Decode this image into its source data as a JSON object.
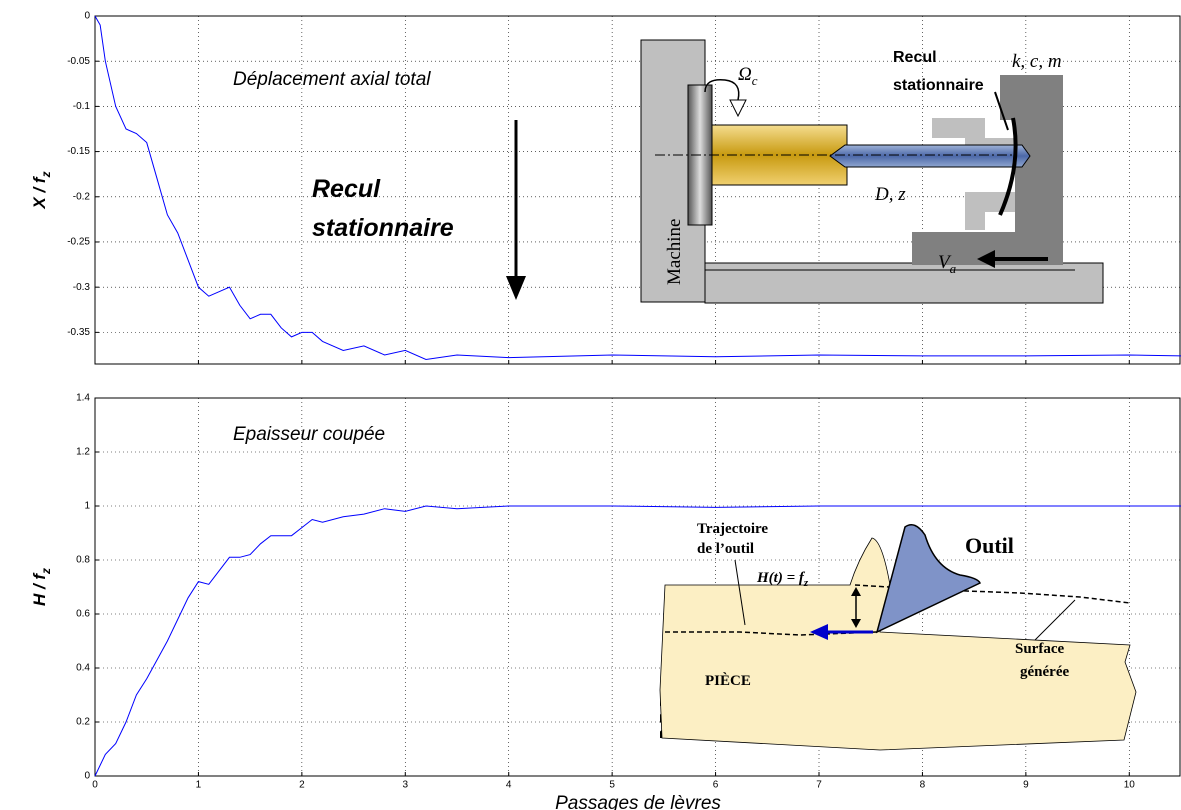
{
  "chart_data": [
    {
      "type": "line",
      "color": "#0000ff",
      "grid": true,
      "ylabel": {
        "base": "X / f",
        "sub": "z"
      },
      "xlim": [
        0,
        10.5
      ],
      "ylim": [
        -0.385,
        0
      ],
      "yticks": [
        0,
        -0.05,
        -0.1,
        -0.15,
        -0.2,
        -0.25,
        -0.3,
        -0.35
      ],
      "annotations": [
        "Déplacement axial total",
        "Recul",
        "stationnaire"
      ],
      "x": [
        0,
        0.05,
        0.1,
        0.2,
        0.3,
        0.4,
        0.5,
        0.6,
        0.7,
        0.8,
        0.9,
        1.0,
        1.1,
        1.2,
        1.3,
        1.4,
        1.5,
        1.6,
        1.7,
        1.8,
        1.9,
        2.0,
        2.1,
        2.2,
        2.4,
        2.6,
        2.8,
        3.0,
        3.2,
        3.5,
        4,
        5,
        6,
        7,
        8,
        9,
        10,
        10.5
      ],
      "values": [
        0,
        -0.01,
        -0.05,
        -0.1,
        -0.125,
        -0.13,
        -0.14,
        -0.18,
        -0.22,
        -0.24,
        -0.27,
        -0.3,
        -0.31,
        -0.305,
        -0.3,
        -0.32,
        -0.335,
        -0.33,
        -0.33,
        -0.345,
        -0.355,
        -0.35,
        -0.35,
        -0.36,
        -0.37,
        -0.365,
        -0.375,
        -0.37,
        -0.38,
        -0.375,
        -0.378,
        -0.375,
        -0.377,
        -0.375,
        -0.376,
        -0.376,
        -0.375,
        -0.376
      ]
    },
    {
      "type": "line",
      "color": "#0000ff",
      "grid": true,
      "ylabel": {
        "base": "H / f",
        "sub": "z"
      },
      "xlabel": "Passages de lèvres",
      "xlim": [
        0,
        10.5
      ],
      "ylim": [
        0,
        1.4
      ],
      "xticks": [
        0,
        1,
        2,
        3,
        4,
        5,
        6,
        7,
        8,
        9,
        10
      ],
      "yticks": [
        0,
        0.2,
        0.4,
        0.6,
        0.8,
        1,
        1.2,
        1.4
      ],
      "annotations": [
        "Epaisseur coupée"
      ],
      "x": [
        0,
        0.1,
        0.2,
        0.3,
        0.4,
        0.5,
        0.6,
        0.7,
        0.8,
        0.9,
        1.0,
        1.1,
        1.2,
        1.3,
        1.4,
        1.5,
        1.6,
        1.7,
        1.8,
        1.9,
        2.0,
        2.1,
        2.2,
        2.4,
        2.6,
        2.8,
        3.0,
        3.2,
        3.5,
        4,
        5,
        6,
        7,
        8,
        9,
        10,
        10.5
      ],
      "values": [
        0,
        0.08,
        0.12,
        0.2,
        0.3,
        0.36,
        0.43,
        0.5,
        0.58,
        0.66,
        0.72,
        0.71,
        0.76,
        0.81,
        0.81,
        0.82,
        0.86,
        0.89,
        0.89,
        0.89,
        0.92,
        0.95,
        0.94,
        0.96,
        0.97,
        0.99,
        0.98,
        1.0,
        0.99,
        1.0,
        1.0,
        0.995,
        1.0,
        1.0,
        1.0,
        1.0,
        1.0
      ]
    }
  ],
  "machine_diagram": {
    "omega": {
      "base": "Ω",
      "sub": "c"
    },
    "recul": [
      "Recul",
      "stationnaire"
    ],
    "kcm": "k, c, m",
    "dz": "D, z",
    "machine": "Machine",
    "va": {
      "base": "V",
      "sub": "a"
    }
  },
  "cutting_diagram": {
    "trajectoire": [
      "Trajectoire",
      "de l’outil"
    ],
    "h": {
      "base": "H(t) = f",
      "sub": "z"
    },
    "outil": "Outil",
    "piece": "PIÈCE",
    "surface": [
      "Surface",
      "générée"
    ]
  }
}
